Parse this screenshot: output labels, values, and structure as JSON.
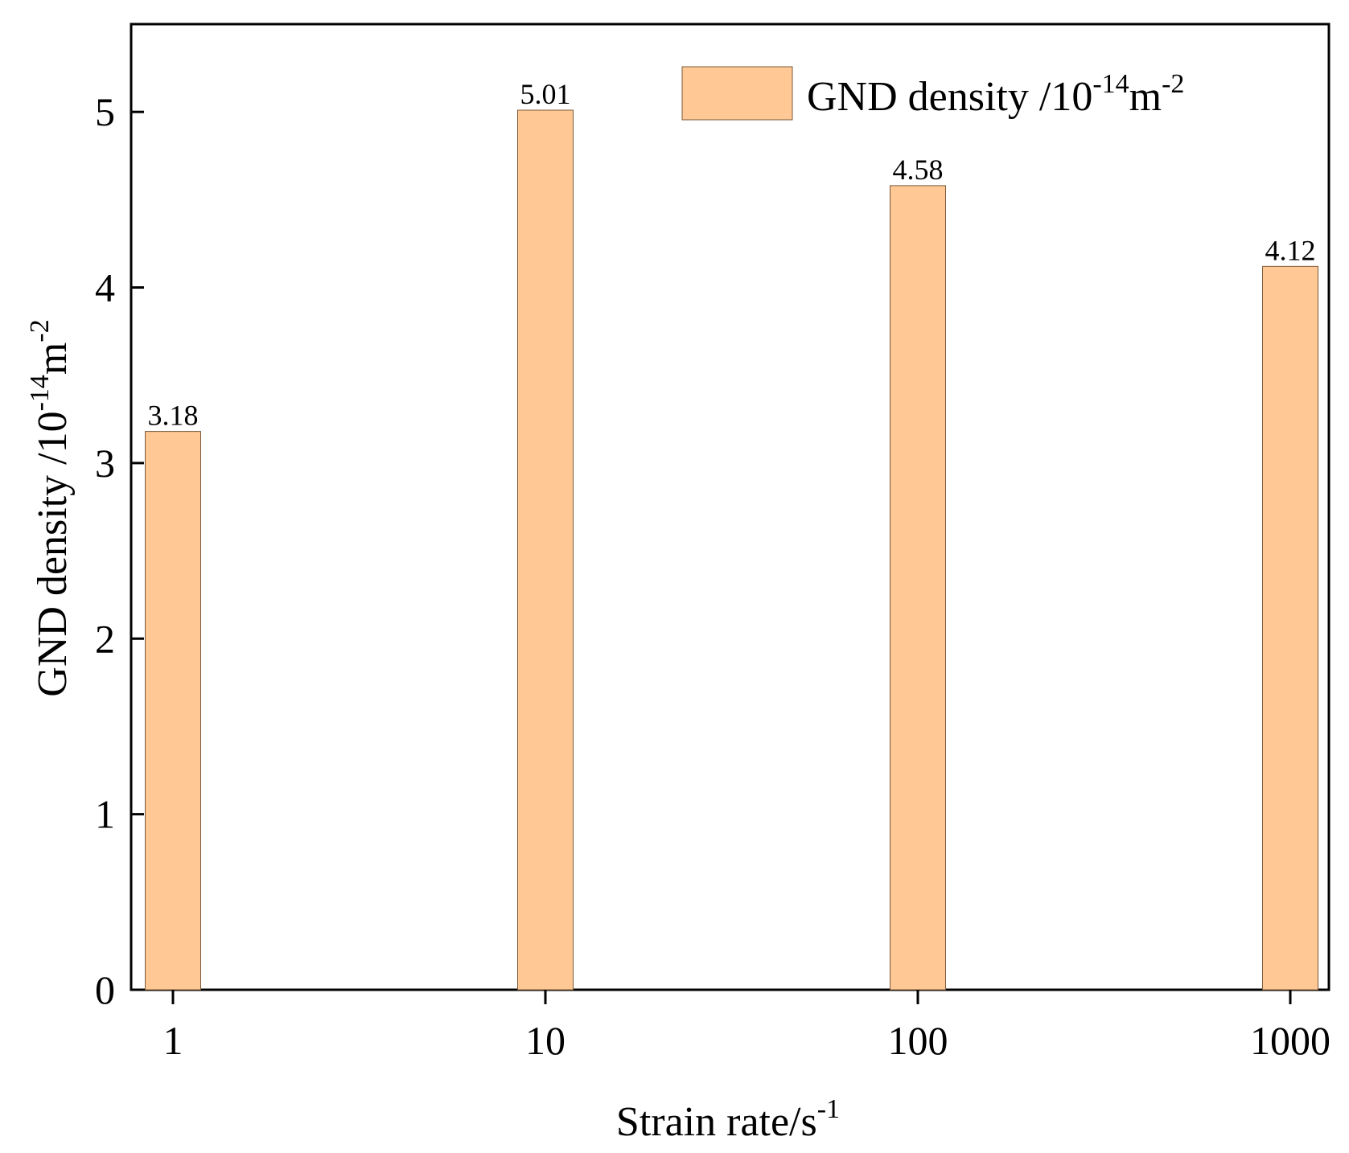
{
  "chart_data": {
    "type": "bar",
    "title": "",
    "categories": [
      "1",
      "10",
      "100",
      "1000"
    ],
    "series": [
      {
        "name": "GND density /10-14m-2",
        "values": [
          3.18,
          5.01,
          4.58,
          4.12
        ],
        "labels": [
          "3.18",
          "5.01",
          "4.58",
          "4.12"
        ],
        "color": "#FFC894",
        "edge_color": "#7a5a3a"
      }
    ],
    "xlabel": {
      "base": "Strain rate/s",
      "sup": "-1"
    },
    "ylabel": {
      "base": "GND density /10",
      "sup1": "-14",
      "mid": "m",
      "sup2": "-2"
    },
    "legend": {
      "base": "GND density /10",
      "sup1": "-14",
      "mid": "m",
      "sup2": "-2",
      "position": "top-right"
    },
    "ylim": [
      0,
      5.5
    ],
    "yticks": [
      0,
      1,
      2,
      3,
      4,
      5
    ],
    "ytick_labels": [
      "0",
      "1",
      "2",
      "3",
      "4",
      "5"
    ],
    "xscale": "log",
    "grid": false
  }
}
